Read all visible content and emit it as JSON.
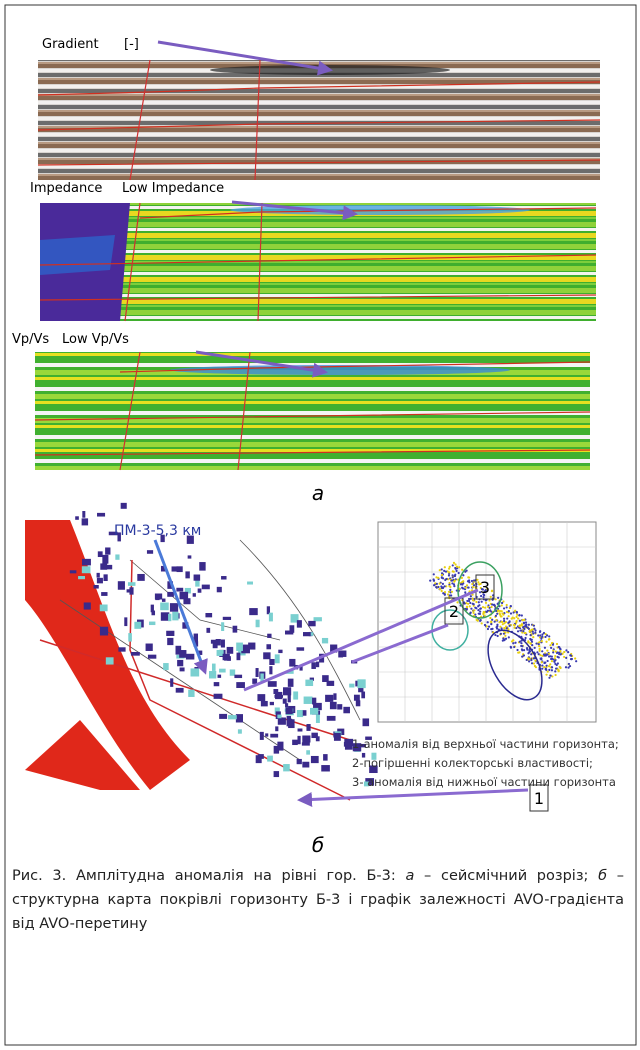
{
  "panel_a": {
    "gradient_label": "Gradient",
    "gradient_unit": "[-]",
    "impedance_label": "Impedance",
    "impedance_note": "Low Impedance",
    "vpvs_label": "Vp/Vs",
    "vpvs_note": "Low Vp/Vs",
    "letter": "а"
  },
  "panel_b": {
    "profile_label": "ПМ-3-5,3 км",
    "box_labels": [
      "3",
      "2",
      "1"
    ],
    "legend": [
      "1-аномалія від верхньої частини горизонта;",
      "2-погіршенні колекторські властивості;",
      "3- аномалія від нижньої частини горизонта"
    ],
    "letter": "б"
  },
  "caption": [
    "Рис. 3. Амплітудна аномалія на рівні гор. Б-3: ",
    "а",
    " – сейсмічний розріз; ",
    "б",
    " – структурна карта покрівлі горизонту Б-3 і графік залежності AVO-градієнта від AVO-перетину"
  ]
}
